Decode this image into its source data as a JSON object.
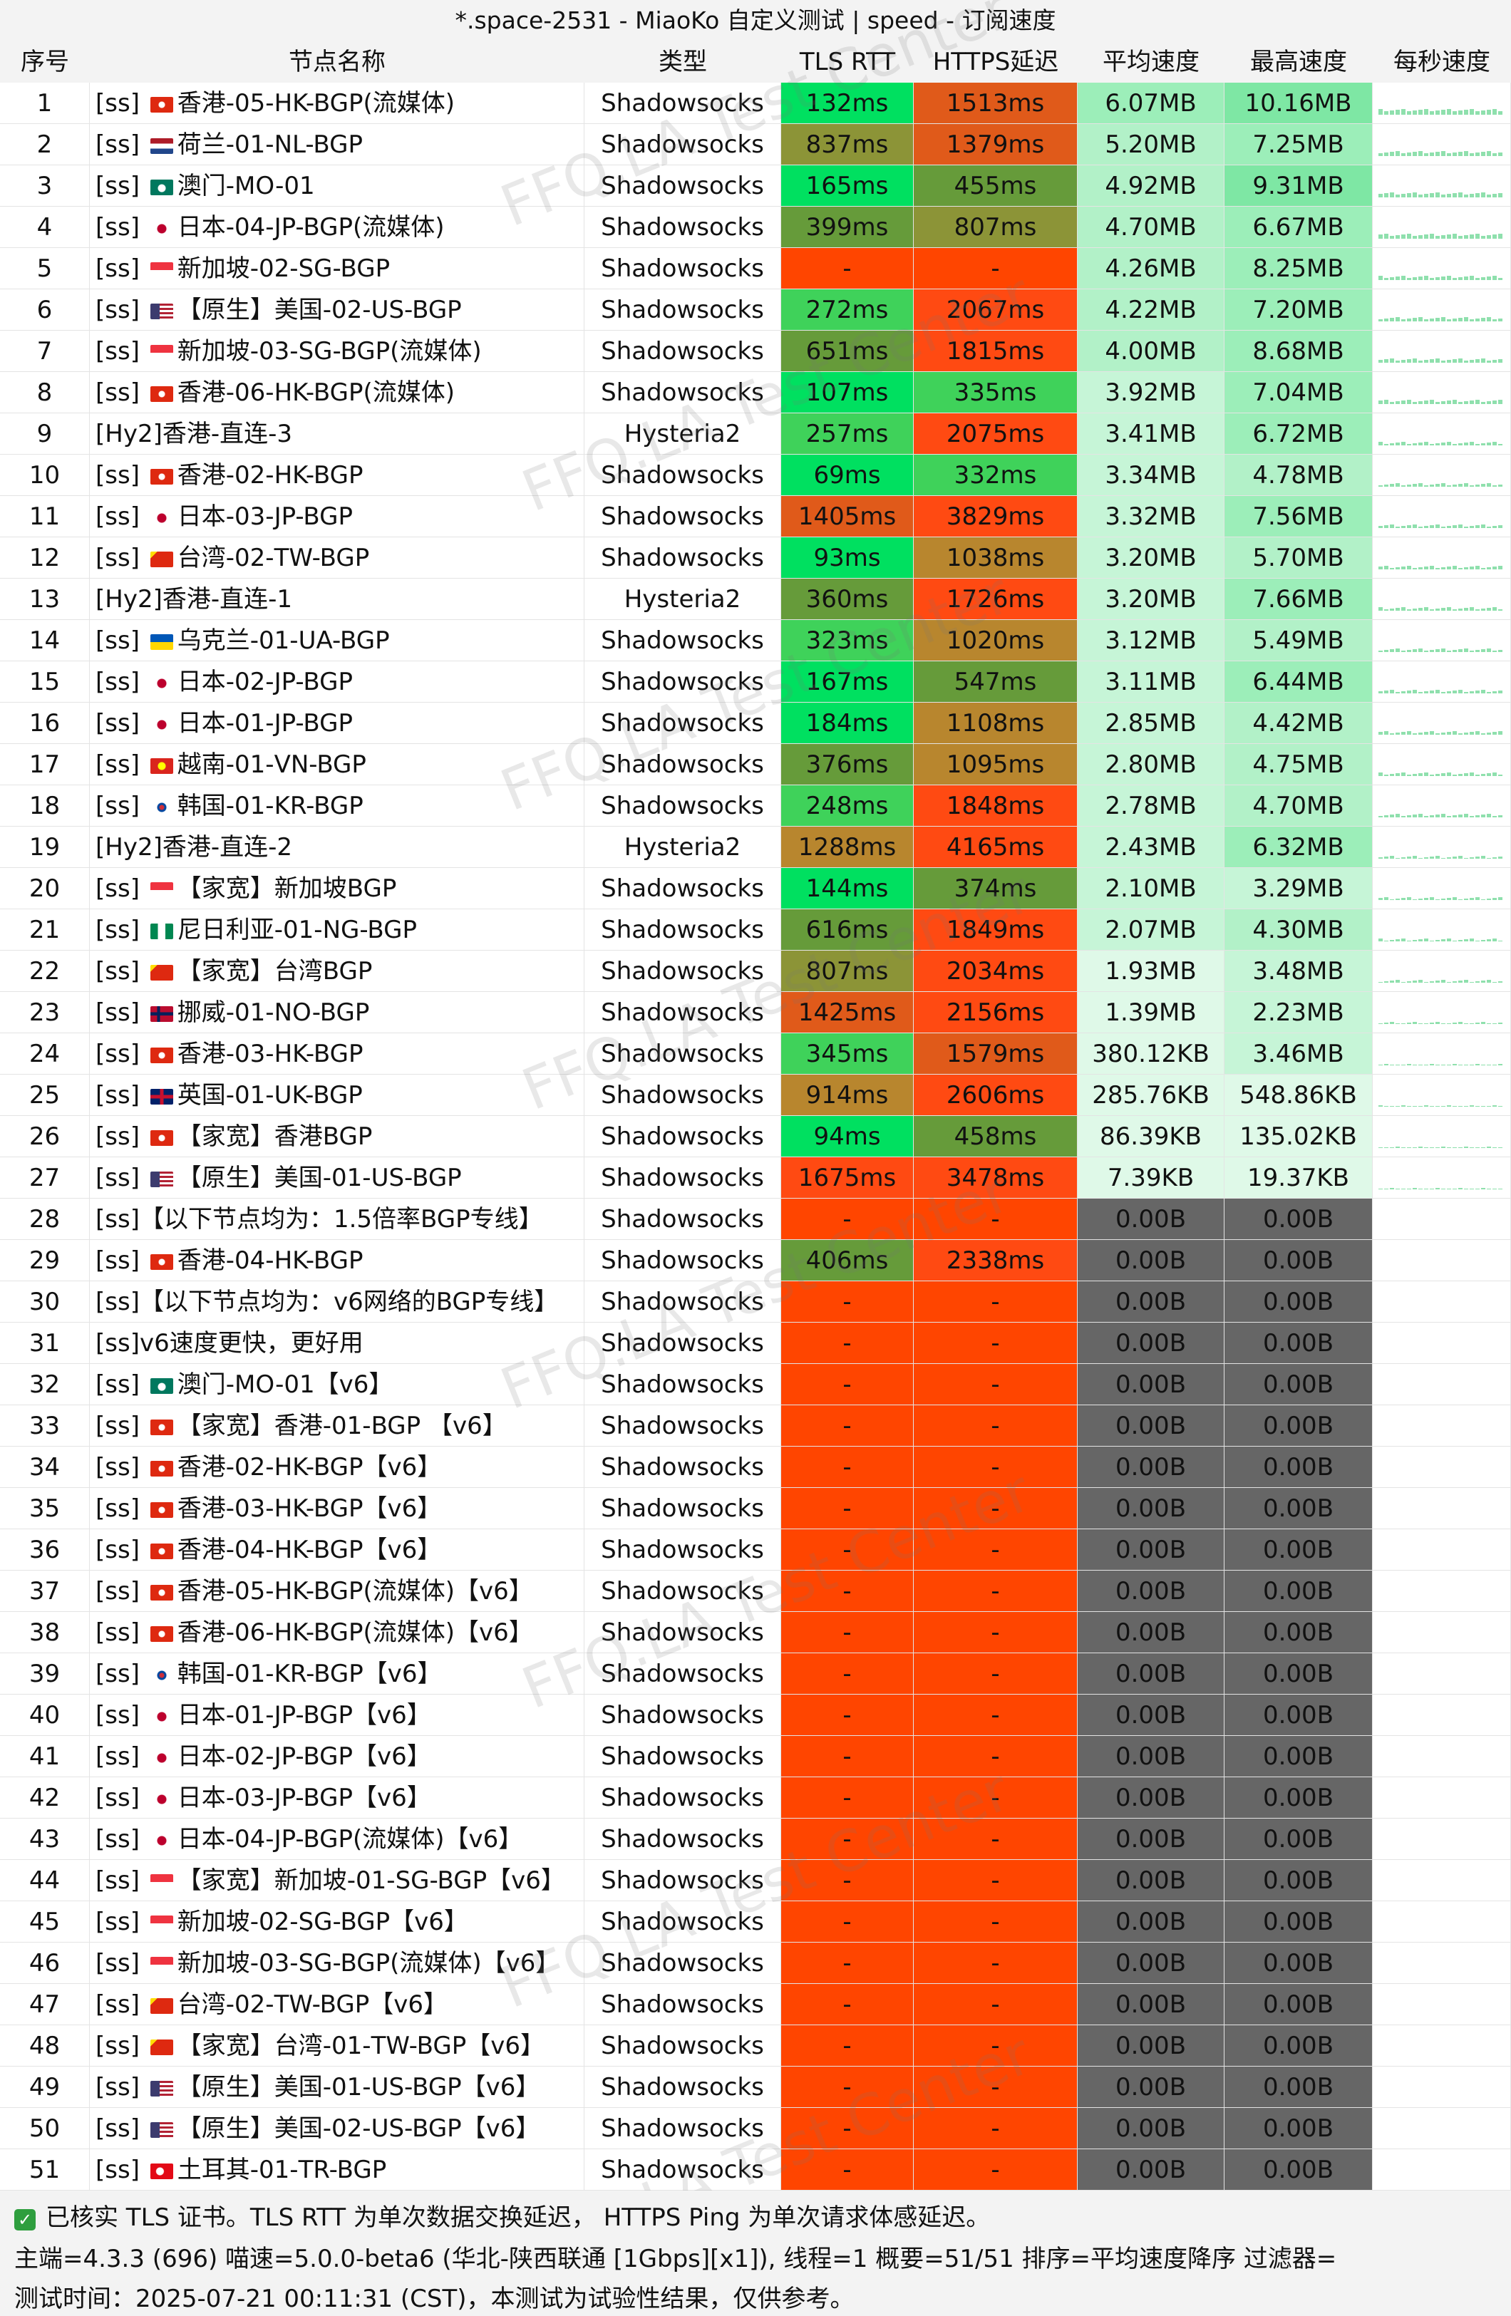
{
  "window": {
    "title": "*.space-2531 - MiaoKo 自定义测试 | speed - 订阅速度"
  },
  "columns": [
    "序号",
    "节点名称",
    "类型",
    "TLS RTT",
    "HTTPS延迟",
    "平均速度",
    "最高速度",
    "每秒速度"
  ],
  "watermark": "FFQ.LA Test Center",
  "colors": {
    "fail": "#ff4500",
    "zero_speed": "#666666",
    "sparkline": "#8fe0ad",
    "green_bright": "#00e060",
    "green": "#3fd25a",
    "olive_green": "#669b3a",
    "olive": "#8c9437",
    "brown": "#b8862e",
    "orange": "#e05a1a",
    "red_orange": "#ff4a12"
  },
  "rows": [
    {
      "idx": "1",
      "name": "[ss] 香港-05-HK-BGP(流媒体)",
      "flag": "hk",
      "type": "Shadowsocks",
      "tls": "132ms",
      "https": "1513ms",
      "avg": "6.07MB",
      "max": "10.16MB"
    },
    {
      "idx": "2",
      "name": "[ss] 荷兰-01-NL-BGP",
      "flag": "nl",
      "type": "Shadowsocks",
      "tls": "837ms",
      "https": "1379ms",
      "avg": "5.20MB",
      "max": "7.25MB"
    },
    {
      "idx": "3",
      "name": "[ss] 澳门-MO-01",
      "flag": "mo",
      "type": "Shadowsocks",
      "tls": "165ms",
      "https": "455ms",
      "avg": "4.92MB",
      "max": "9.31MB"
    },
    {
      "idx": "4",
      "name": "[ss] 日本-04-JP-BGP(流媒体)",
      "flag": "jp",
      "type": "Shadowsocks",
      "tls": "399ms",
      "https": "807ms",
      "avg": "4.70MB",
      "max": "6.67MB"
    },
    {
      "idx": "5",
      "name": "[ss] 新加坡-02-SG-BGP",
      "flag": "sg",
      "type": "Shadowsocks",
      "tls": "-",
      "https": "-",
      "avg": "4.26MB",
      "max": "8.25MB"
    },
    {
      "idx": "6",
      "name": "[ss] 【原生】美国-02-US-BGP",
      "flag": "us",
      "type": "Shadowsocks",
      "tls": "272ms",
      "https": "2067ms",
      "avg": "4.22MB",
      "max": "7.20MB"
    },
    {
      "idx": "7",
      "name": "[ss] 新加坡-03-SG-BGP(流媒体)",
      "flag": "sg",
      "type": "Shadowsocks",
      "tls": "651ms",
      "https": "1815ms",
      "avg": "4.00MB",
      "max": "8.68MB"
    },
    {
      "idx": "8",
      "name": "[ss] 香港-06-HK-BGP(流媒体)",
      "flag": "hk",
      "type": "Shadowsocks",
      "tls": "107ms",
      "https": "335ms",
      "avg": "3.92MB",
      "max": "7.04MB"
    },
    {
      "idx": "9",
      "name": "[Hy2]香港-直连-3",
      "flag": "",
      "type": "Hysteria2",
      "tls": "257ms",
      "https": "2075ms",
      "avg": "3.41MB",
      "max": "6.72MB"
    },
    {
      "idx": "10",
      "name": "[ss] 香港-02-HK-BGP",
      "flag": "hk",
      "type": "Shadowsocks",
      "tls": "69ms",
      "https": "332ms",
      "avg": "3.34MB",
      "max": "4.78MB"
    },
    {
      "idx": "11",
      "name": "[ss] 日本-03-JP-BGP",
      "flag": "jp",
      "type": "Shadowsocks",
      "tls": "1405ms",
      "https": "3829ms",
      "avg": "3.32MB",
      "max": "7.56MB"
    },
    {
      "idx": "12",
      "name": "[ss] 台湾-02-TW-BGP",
      "flag": "cn",
      "type": "Shadowsocks",
      "tls": "93ms",
      "https": "1038ms",
      "avg": "3.20MB",
      "max": "5.70MB"
    },
    {
      "idx": "13",
      "name": "[Hy2]香港-直连-1",
      "flag": "",
      "type": "Hysteria2",
      "tls": "360ms",
      "https": "1726ms",
      "avg": "3.20MB",
      "max": "7.66MB"
    },
    {
      "idx": "14",
      "name": "[ss] 乌克兰-01-UA-BGP",
      "flag": "ua",
      "type": "Shadowsocks",
      "tls": "323ms",
      "https": "1020ms",
      "avg": "3.12MB",
      "max": "5.49MB"
    },
    {
      "idx": "15",
      "name": "[ss] 日本-02-JP-BGP",
      "flag": "jp",
      "type": "Shadowsocks",
      "tls": "167ms",
      "https": "547ms",
      "avg": "3.11MB",
      "max": "6.44MB"
    },
    {
      "idx": "16",
      "name": "[ss] 日本-01-JP-BGP",
      "flag": "jp",
      "type": "Shadowsocks",
      "tls": "184ms",
      "https": "1108ms",
      "avg": "2.85MB",
      "max": "4.42MB"
    },
    {
      "idx": "17",
      "name": "[ss] 越南-01-VN-BGP",
      "flag": "vn",
      "type": "Shadowsocks",
      "tls": "376ms",
      "https": "1095ms",
      "avg": "2.80MB",
      "max": "4.75MB"
    },
    {
      "idx": "18",
      "name": "[ss] 韩国-01-KR-BGP",
      "flag": "kr",
      "type": "Shadowsocks",
      "tls": "248ms",
      "https": "1848ms",
      "avg": "2.78MB",
      "max": "4.70MB"
    },
    {
      "idx": "19",
      "name": "[Hy2]香港-直连-2",
      "flag": "",
      "type": "Hysteria2",
      "tls": "1288ms",
      "https": "4165ms",
      "avg": "2.43MB",
      "max": "6.32MB"
    },
    {
      "idx": "20",
      "name": "[ss] 【家宽】新加坡BGP",
      "flag": "sg",
      "type": "Shadowsocks",
      "tls": "144ms",
      "https": "374ms",
      "avg": "2.10MB",
      "max": "3.29MB"
    },
    {
      "idx": "21",
      "name": "[ss] 尼日利亚-01-NG-BGP",
      "flag": "ng",
      "type": "Shadowsocks",
      "tls": "616ms",
      "https": "1849ms",
      "avg": "2.07MB",
      "max": "4.30MB"
    },
    {
      "idx": "22",
      "name": "[ss] 【家宽】台湾BGP",
      "flag": "cn",
      "type": "Shadowsocks",
      "tls": "807ms",
      "https": "2034ms",
      "avg": "1.93MB",
      "max": "3.48MB"
    },
    {
      "idx": "23",
      "name": "[ss] 挪威-01-NO-BGP",
      "flag": "no",
      "type": "Shadowsocks",
      "tls": "1425ms",
      "https": "2156ms",
      "avg": "1.39MB",
      "max": "2.23MB"
    },
    {
      "idx": "24",
      "name": "[ss] 香港-03-HK-BGP",
      "flag": "hk",
      "type": "Shadowsocks",
      "tls": "345ms",
      "https": "1579ms",
      "avg": "380.12KB",
      "max": "3.46MB"
    },
    {
      "idx": "25",
      "name": "[ss] 英国-01-UK-BGP",
      "flag": "uk",
      "type": "Shadowsocks",
      "tls": "914ms",
      "https": "2606ms",
      "avg": "285.76KB",
      "max": "548.86KB"
    },
    {
      "idx": "26",
      "name": "[ss] 【家宽】香港BGP",
      "flag": "hk",
      "type": "Shadowsocks",
      "tls": "94ms",
      "https": "458ms",
      "avg": "86.39KB",
      "max": "135.02KB"
    },
    {
      "idx": "27",
      "name": "[ss] 【原生】美国-01-US-BGP",
      "flag": "us",
      "type": "Shadowsocks",
      "tls": "1675ms",
      "https": "3478ms",
      "avg": "7.39KB",
      "max": "19.37KB"
    },
    {
      "idx": "28",
      "name": "[ss]【以下节点均为：1.5倍率BGP专线】",
      "flag": "",
      "type": "Shadowsocks",
      "tls": "-",
      "https": "-",
      "avg": "0.00B",
      "max": "0.00B"
    },
    {
      "idx": "29",
      "name": "[ss] 香港-04-HK-BGP",
      "flag": "hk",
      "type": "Shadowsocks",
      "tls": "406ms",
      "https": "2338ms",
      "avg": "0.00B",
      "max": "0.00B"
    },
    {
      "idx": "30",
      "name": "[ss]【以下节点均为：v6网络的BGP专线】",
      "flag": "",
      "type": "Shadowsocks",
      "tls": "-",
      "https": "-",
      "avg": "0.00B",
      "max": "0.00B"
    },
    {
      "idx": "31",
      "name": "[ss]v6速度更快，更好用",
      "flag": "",
      "type": "Shadowsocks",
      "tls": "-",
      "https": "-",
      "avg": "0.00B",
      "max": "0.00B"
    },
    {
      "idx": "32",
      "name": "[ss] 澳门-MO-01【v6】",
      "flag": "mo",
      "type": "Shadowsocks",
      "tls": "-",
      "https": "-",
      "avg": "0.00B",
      "max": "0.00B"
    },
    {
      "idx": "33",
      "name": "[ss] 【家宽】香港-01-BGP 【v6】",
      "flag": "hk",
      "type": "Shadowsocks",
      "tls": "-",
      "https": "-",
      "avg": "0.00B",
      "max": "0.00B"
    },
    {
      "idx": "34",
      "name": "[ss] 香港-02-HK-BGP【v6】",
      "flag": "hk",
      "type": "Shadowsocks",
      "tls": "-",
      "https": "-",
      "avg": "0.00B",
      "max": "0.00B"
    },
    {
      "idx": "35",
      "name": "[ss] 香港-03-HK-BGP【v6】",
      "flag": "hk",
      "type": "Shadowsocks",
      "tls": "-",
      "https": "-",
      "avg": "0.00B",
      "max": "0.00B"
    },
    {
      "idx": "36",
      "name": "[ss] 香港-04-HK-BGP【v6】",
      "flag": "hk",
      "type": "Shadowsocks",
      "tls": "-",
      "https": "-",
      "avg": "0.00B",
      "max": "0.00B"
    },
    {
      "idx": "37",
      "name": "[ss] 香港-05-HK-BGP(流媒体)【v6】",
      "flag": "hk",
      "type": "Shadowsocks",
      "tls": "-",
      "https": "-",
      "avg": "0.00B",
      "max": "0.00B"
    },
    {
      "idx": "38",
      "name": "[ss] 香港-06-HK-BGP(流媒体)【v6】",
      "flag": "hk",
      "type": "Shadowsocks",
      "tls": "-",
      "https": "-",
      "avg": "0.00B",
      "max": "0.00B"
    },
    {
      "idx": "39",
      "name": "[ss] 韩国-01-KR-BGP【v6】",
      "flag": "kr",
      "type": "Shadowsocks",
      "tls": "-",
      "https": "-",
      "avg": "0.00B",
      "max": "0.00B"
    },
    {
      "idx": "40",
      "name": "[ss] 日本-01-JP-BGP【v6】",
      "flag": "jp",
      "type": "Shadowsocks",
      "tls": "-",
      "https": "-",
      "avg": "0.00B",
      "max": "0.00B"
    },
    {
      "idx": "41",
      "name": "[ss] 日本-02-JP-BGP【v6】",
      "flag": "jp",
      "type": "Shadowsocks",
      "tls": "-",
      "https": "-",
      "avg": "0.00B",
      "max": "0.00B"
    },
    {
      "idx": "42",
      "name": "[ss] 日本-03-JP-BGP【v6】",
      "flag": "jp",
      "type": "Shadowsocks",
      "tls": "-",
      "https": "-",
      "avg": "0.00B",
      "max": "0.00B"
    },
    {
      "idx": "43",
      "name": "[ss] 日本-04-JP-BGP(流媒体)【v6】",
      "flag": "jp",
      "type": "Shadowsocks",
      "tls": "-",
      "https": "-",
      "avg": "0.00B",
      "max": "0.00B"
    },
    {
      "idx": "44",
      "name": "[ss] 【家宽】新加坡-01-SG-BGP【v6】",
      "flag": "sg",
      "type": "Shadowsocks",
      "tls": "-",
      "https": "-",
      "avg": "0.00B",
      "max": "0.00B"
    },
    {
      "idx": "45",
      "name": "[ss] 新加坡-02-SG-BGP【v6】",
      "flag": "sg",
      "type": "Shadowsocks",
      "tls": "-",
      "https": "-",
      "avg": "0.00B",
      "max": "0.00B"
    },
    {
      "idx": "46",
      "name": "[ss] 新加坡-03-SG-BGP(流媒体)【v6】",
      "flag": "sg",
      "type": "Shadowsocks",
      "tls": "-",
      "https": "-",
      "avg": "0.00B",
      "max": "0.00B"
    },
    {
      "idx": "47",
      "name": "[ss] 台湾-02-TW-BGP【v6】",
      "flag": "cn",
      "type": "Shadowsocks",
      "tls": "-",
      "https": "-",
      "avg": "0.00B",
      "max": "0.00B"
    },
    {
      "idx": "48",
      "name": "[ss] 【家宽】台湾-01-TW-BGP【v6】",
      "flag": "cn",
      "type": "Shadowsocks",
      "tls": "-",
      "https": "-",
      "avg": "0.00B",
      "max": "0.00B"
    },
    {
      "idx": "49",
      "name": "[ss] 【原生】美国-01-US-BGP【v6】",
      "flag": "us",
      "type": "Shadowsocks",
      "tls": "-",
      "https": "-",
      "avg": "0.00B",
      "max": "0.00B"
    },
    {
      "idx": "50",
      "name": "[ss] 【原生】美国-02-US-BGP【v6】",
      "flag": "us",
      "type": "Shadowsocks",
      "tls": "-",
      "https": "-",
      "avg": "0.00B",
      "max": "0.00B"
    },
    {
      "idx": "51",
      "name": "[ss] 土耳其-01-TR-BGP",
      "flag": "tr",
      "type": "Shadowsocks",
      "tls": "-",
      "https": "-",
      "avg": "0.00B",
      "max": "0.00B"
    }
  ],
  "footer": {
    "line1": "已核实 TLS 证书。TLS RTT 为单次数据交换延迟， HTTPS Ping 为单次请求体感延迟。",
    "line2": "主端=4.3.3 (696) 喵速=5.0.0-beta6 (华北-陕西联通 [1Gbps][x1]), 线程=1 概要=51/51 排序=平均速度降序 过滤器=",
    "line3": "测试时间：2025-07-21 00:11:31 (CST)，本测试为试验性结果，仅供参考。"
  }
}
